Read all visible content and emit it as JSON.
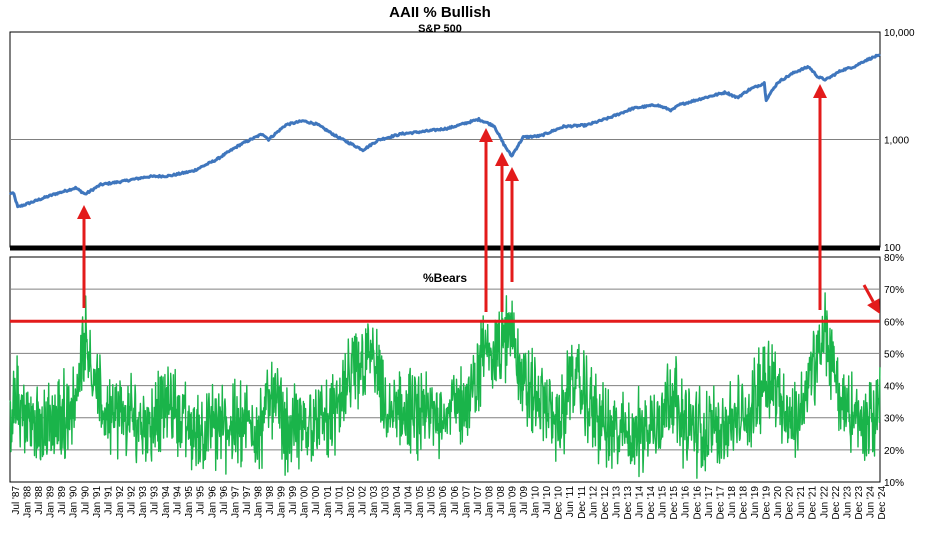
{
  "chart_data": [
    {
      "type": "line",
      "title": "AAII % Bullish",
      "subtitle": "S&P 500",
      "yscale": "log",
      "ylim": [
        100,
        10000
      ],
      "yticks": [
        100,
        1000,
        10000
      ],
      "ytick_labels": [
        "100",
        "1,000",
        "10,000"
      ],
      "xlim": [
        "1987-07",
        "2025-02"
      ],
      "color": "#3f76bd",
      "grid": "horizontal at 1,000",
      "series": [
        {
          "x": [
            "1987-07",
            "1987-09",
            "1987-11",
            "1988-06",
            "1989-06",
            "1990-05",
            "1990-10",
            "1991-06",
            "1992-06",
            "1993-06",
            "1994-06",
            "1995-06",
            "1996-06",
            "1997-06",
            "1998-06",
            "1998-09",
            "1999-06",
            "2000-03",
            "2000-10",
            "2001-09",
            "2002-10",
            "2003-06",
            "2004-06",
            "2005-06",
            "2006-06",
            "2007-10",
            "2008-06",
            "2008-11",
            "2009-03",
            "2009-09",
            "2010-06",
            "2011-06",
            "2012-06",
            "2013-06",
            "2014-06",
            "2015-06",
            "2016-02",
            "2016-06",
            "2017-06",
            "2018-06",
            "2018-12",
            "2019-06",
            "2020-02",
            "2020-03",
            "2020-09",
            "2021-06",
            "2022-01",
            "2022-06",
            "2022-10",
            "2023-06",
            "2024-01",
            "2024-06",
            "2024-12"
          ],
          "values": [
            320,
            310,
            235,
            260,
            310,
            355,
            310,
            380,
            410,
            450,
            460,
            510,
            650,
            890,
            1130,
            1000,
            1370,
            1490,
            1390,
            1050,
            800,
            990,
            1130,
            1190,
            1270,
            1540,
            1340,
            900,
            700,
            1050,
            1080,
            1320,
            1360,
            1600,
            1950,
            2100,
            1870,
            2100,
            2420,
            2750,
            2450,
            2900,
            3350,
            2350,
            3400,
            4250,
            4750,
            3800,
            3600,
            4400,
            4800,
            5400,
            5950
          ]
        }
      ]
    },
    {
      "type": "line",
      "title": "%Bears",
      "ylim": [
        10,
        80
      ],
      "yticks": [
        10,
        20,
        30,
        40,
        50,
        60,
        70,
        80
      ],
      "ytick_labels": [
        "10%",
        "20%",
        "30%",
        "40%",
        "50%",
        "60%",
        "70%",
        "80%"
      ],
      "grid": "horizontal",
      "color": "#1ab44a",
      "threshold": {
        "value": 60,
        "color": "#e31b1b"
      },
      "x_tick_labels": [
        "Jul '87",
        "Jan '88",
        "Jul '88",
        "Jan '89",
        "Jul '89",
        "Jan '90",
        "Jul '90",
        "Jan '91",
        "Jul '91",
        "Jan '92",
        "Jul '92",
        "Jan '93",
        "Jul '93",
        "Jan '94",
        "Jul '94",
        "Jan '95",
        "Jul '95",
        "Jan '96",
        "Jul '96",
        "Jan '97",
        "Jul '97",
        "Jan '98",
        "Jul '98",
        "Jan '99",
        "Jul '99",
        "Jan '00",
        "Jul '00",
        "Jan '01",
        "Jul '01",
        "Jan '02",
        "Jul '02",
        "Jan '03",
        "Jul '03",
        "Jan '04",
        "Jul '04",
        "Jan '05",
        "Jul '05",
        "Jan '06",
        "Jul '06",
        "Jan '07",
        "Jul '07",
        "Jan '08",
        "Jul '08",
        "Jan '09",
        "Jul '09",
        "Jan '10",
        "Jul '10",
        "Dec '10",
        "Jun '11",
        "Dec '11",
        "Jun '12",
        "Dec '12",
        "Jun '13",
        "Dec '13",
        "Jun '14",
        "Dec '14",
        "Jun '15",
        "Dec '15",
        "Jun '16",
        "Dec '16",
        "Jun '17",
        "Dec '17",
        "Jun '18",
        "Dec '18",
        "Jun '19",
        "Dec '19",
        "Jun '20",
        "Dec '20",
        "Jun '21",
        "Dec '21",
        "Jun '22",
        "Dec '22",
        "Jun '23",
        "Dec '23",
        "Jun '24",
        "Dec '24"
      ],
      "series": [
        {
          "x": [
            "1987-07",
            "1987-10",
            "1988-06",
            "1989-06",
            "1990-06",
            "1990-10",
            "1990-12",
            "1991-06",
            "1992-06",
            "1993-06",
            "1994-06",
            "1995-06",
            "1996-06",
            "1997-06",
            "1998-06",
            "1998-10",
            "1999-06",
            "2000-06",
            "2001-06",
            "2002-07",
            "2003-03",
            "2003-10",
            "2004-06",
            "2005-06",
            "2006-06",
            "2007-06",
            "2008-02",
            "2008-06",
            "2008-11",
            "2009-03",
            "2009-09",
            "2010-06",
            "2011-06",
            "2011-10",
            "2012-06",
            "2013-06",
            "2014-06",
            "2015-06",
            "2016-02",
            "2016-06",
            "2017-06",
            "2018-06",
            "2019-06",
            "2020-03",
            "2020-09",
            "2021-06",
            "2022-06",
            "2022-10",
            "2023-06",
            "2024-06",
            "2024-12",
            "2025-01"
          ],
          "values": [
            25,
            35,
            28,
            27,
            36,
            60,
            50,
            33,
            30,
            28,
            35,
            25,
            27,
            28,
            27,
            40,
            26,
            28,
            30,
            45,
            50,
            30,
            32,
            30,
            33,
            35,
            55,
            50,
            52,
            60,
            40,
            35,
            28,
            45,
            35,
            25,
            25,
            28,
            40,
            30,
            25,
            28,
            30,
            45,
            38,
            27,
            50,
            55,
            35,
            27,
            30,
            40
          ]
        }
      ]
    }
  ],
  "arrows": {
    "color": "#e31b1b",
    "count": 6
  }
}
